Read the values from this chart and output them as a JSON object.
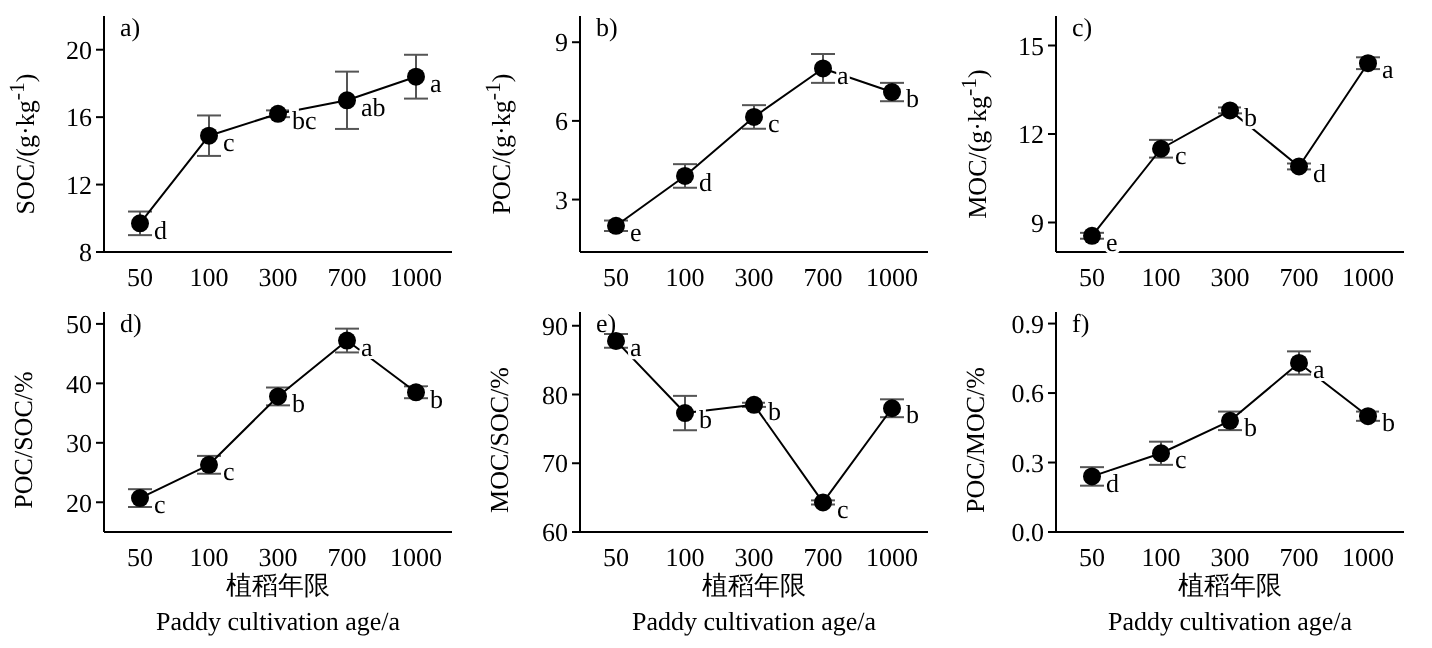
{
  "chart_data": [
    {
      "type": "line",
      "title": "a)",
      "ylabel": "SOC/(g·kg$^{-1}$)",
      "categories": [
        "50",
        "100",
        "300",
        "700",
        "1000"
      ],
      "series": [
        {
          "color": "#000000",
          "values": [
            9.7,
            14.9,
            16.2,
            17.0,
            18.4
          ],
          "errors": [
            0.7,
            1.2,
            0.2,
            1.7,
            1.3
          ]
        }
      ],
      "ylim": [
        8,
        22
      ],
      "yticks": [
        8,
        12,
        16,
        20
      ],
      "marker": "circle",
      "line_style": "solid",
      "grid": false,
      "legend": false,
      "annotations": [
        {
          "text": "d",
          "x": "50",
          "y": 9.7
        },
        {
          "text": "c",
          "x": "100",
          "y": 14.9
        },
        {
          "text": "bc",
          "x": "300",
          "y": 16.2
        },
        {
          "text": "ab",
          "x": "700",
          "y": 17.0
        },
        {
          "text": "a",
          "x": "1000",
          "y": 18.4
        }
      ]
    },
    {
      "type": "line",
      "title": "b)",
      "ylabel": "POC/(g·kg$^{-1}$)",
      "categories": [
        "50",
        "100",
        "300",
        "700",
        "1000"
      ],
      "series": [
        {
          "color": "#000000",
          "values": [
            2.0,
            3.9,
            6.15,
            8.0,
            7.1
          ],
          "errors": [
            0.2,
            0.45,
            0.45,
            0.55,
            0.35
          ]
        }
      ],
      "ylim": [
        1,
        10
      ],
      "yticks": [
        3,
        6,
        9
      ],
      "marker": "circle",
      "line_style": "solid",
      "grid": false,
      "legend": false,
      "annotations": [
        {
          "text": "e",
          "x": "50",
          "y": 2.0
        },
        {
          "text": "d",
          "x": "100",
          "y": 3.9
        },
        {
          "text": "c",
          "x": "300",
          "y": 6.15
        },
        {
          "text": "a",
          "x": "700",
          "y": 8.0
        },
        {
          "text": "b",
          "x": "1000",
          "y": 7.1
        }
      ]
    },
    {
      "type": "line",
      "title": "c)",
      "ylabel": "MOC/(g·kg$^{-1}$)",
      "categories": [
        "50",
        "100",
        "300",
        "700",
        "1000"
      ],
      "series": [
        {
          "color": "#000000",
          "values": [
            8.55,
            11.5,
            12.8,
            10.9,
            14.4
          ],
          "errors": [
            0.1,
            0.3,
            0.1,
            0.1,
            0.2
          ]
        }
      ],
      "ylim": [
        8,
        16
      ],
      "yticks": [
        9,
        12,
        15
      ],
      "marker": "circle",
      "line_style": "solid",
      "grid": false,
      "legend": false,
      "annotations": [
        {
          "text": "e",
          "x": "50",
          "y": 8.55
        },
        {
          "text": "c",
          "x": "100",
          "y": 11.5
        },
        {
          "text": "b",
          "x": "300",
          "y": 12.8
        },
        {
          "text": "d",
          "x": "700",
          "y": 10.9
        },
        {
          "text": "a",
          "x": "1000",
          "y": 14.4
        }
      ]
    },
    {
      "type": "line",
      "title": "d)",
      "ylabel": "POC/SOC/%",
      "xlabel": "植稻年限\nPaddy cultivation age/a",
      "categories": [
        "50",
        "100",
        "300",
        "700",
        "1000"
      ],
      "series": [
        {
          "color": "#000000",
          "values": [
            20.7,
            26.3,
            37.8,
            47.2,
            38.5
          ],
          "errors": [
            1.5,
            1.5,
            1.5,
            2,
            1
          ]
        }
      ],
      "ylim": [
        15,
        52
      ],
      "yticks": [
        20,
        30,
        40,
        50
      ],
      "marker": "circle",
      "line_style": "solid",
      "grid": false,
      "legend": false,
      "annotations": [
        {
          "text": "c",
          "x": "50",
          "y": 20.7
        },
        {
          "text": "c",
          "x": "100",
          "y": 26.3
        },
        {
          "text": "b",
          "x": "300",
          "y": 37.8
        },
        {
          "text": "a",
          "x": "700",
          "y": 47.2
        },
        {
          "text": "b",
          "x": "1000",
          "y": 38.5
        }
      ]
    },
    {
      "type": "line",
      "title": "e)",
      "ylabel": "MOC/SOC/%",
      "xlabel": "植稻年限\nPaddy cultivation age/a",
      "categories": [
        "50",
        "100",
        "300",
        "700",
        "1000"
      ],
      "series": [
        {
          "color": "#000000",
          "values": [
            87.8,
            77.3,
            78.5,
            64.3,
            78.0
          ],
          "errors": [
            1,
            2.5,
            0.3,
            0.3,
            1.3
          ]
        }
      ],
      "ylim": [
        60,
        92
      ],
      "yticks": [
        60,
        70,
        80,
        90
      ],
      "marker": "circle",
      "line_style": "solid",
      "grid": false,
      "legend": false,
      "annotations": [
        {
          "text": "a",
          "x": "50",
          "y": 87.8
        },
        {
          "text": "b",
          "x": "100",
          "y": 77.3
        },
        {
          "text": "b",
          "x": "300",
          "y": 78.5
        },
        {
          "text": "c",
          "x": "700",
          "y": 64.3
        },
        {
          "text": "b",
          "x": "1000",
          "y": 78.0
        }
      ]
    },
    {
      "type": "line",
      "title": "f)",
      "ylabel": "POC/MOC/%",
      "xlabel": "植稻年限\nPaddy cultivation age/a",
      "categories": [
        "50",
        "100",
        "300",
        "700",
        "1000"
      ],
      "series": [
        {
          "color": "#000000",
          "values": [
            0.24,
            0.34,
            0.48,
            0.73,
            0.5
          ],
          "errors": [
            0.04,
            0.05,
            0.04,
            0.05,
            0.02
          ]
        }
      ],
      "ylim": [
        0,
        0.95
      ],
      "yticks": [
        {
          "value": 0,
          "label": "0.0"
        },
        0.3,
        0.6,
        0.9
      ],
      "marker": "circle",
      "line_style": "solid",
      "grid": false,
      "legend": false,
      "annotations": [
        {
          "text": "d",
          "x": "50",
          "y": 0.24
        },
        {
          "text": "c",
          "x": "100",
          "y": 0.34
        },
        {
          "text": "b",
          "x": "300",
          "y": 0.48
        },
        {
          "text": "a",
          "x": "700",
          "y": 0.73
        },
        {
          "text": "b",
          "x": "1000",
          "y": 0.5
        }
      ]
    }
  ]
}
